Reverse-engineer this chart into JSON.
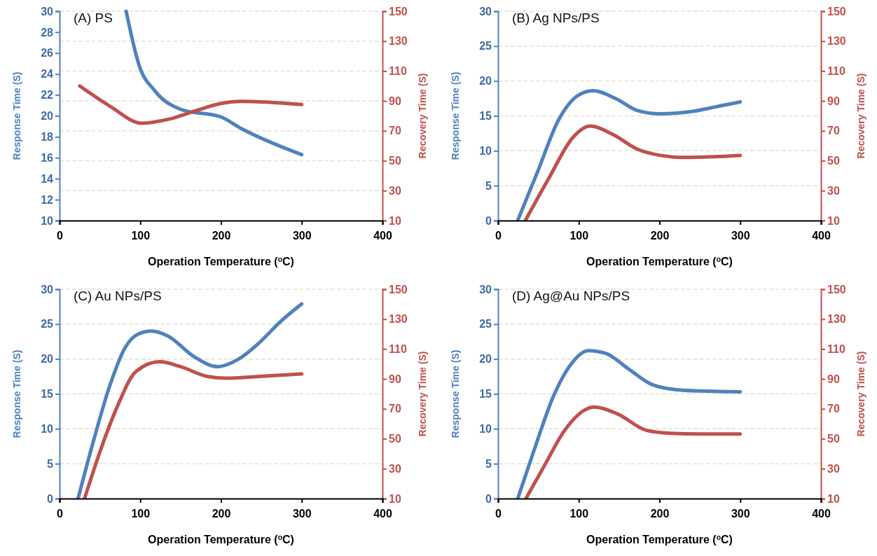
{
  "chart_data": [
    {
      "type": "line",
      "title": "(A) PS",
      "xlabel": "Operation Temperature ($^{o}$C)",
      "ylabel": "Response Time (S)",
      "y2label": "Recovery Time (S)",
      "xlim": [
        0,
        400
      ],
      "xticks": [
        0,
        100,
        200,
        300,
        400
      ],
      "ylim": [
        10,
        30
      ],
      "yticks": [
        10,
        12,
        14,
        16,
        18,
        20,
        22,
        24,
        26,
        28,
        30
      ],
      "y2lim": [
        10,
        150
      ],
      "y2ticks": [
        10,
        30,
        50,
        70,
        90,
        110,
        130,
        150
      ],
      "grid": "y2",
      "series": [
        {
          "color": "#4f81bd",
          "x": [
            82.5,
            98.7,
            118,
            151,
            200,
            225,
            300
          ],
          "values": [
            30,
            24.8,
            22.4,
            20.6,
            19.9,
            18.8,
            16.3
          ]
        },
        {
          "color": "#c0504d",
          "axis": "y2",
          "x": [
            25,
            63,
            102,
            134.6,
            170,
            200,
            225,
            300
          ],
          "values": [
            100,
            86.3,
            75.1,
            77.7,
            83.7,
            88.3,
            89.7,
            87.6
          ]
        }
      ]
    },
    {
      "type": "line",
      "title": "(B) Ag NPs/PS",
      "xlabel": "Operation Temperature ($^{o}$C)",
      "ylabel": "Response Time (S)",
      "y2label": "Recovery Time (S)",
      "xlim": [
        0,
        400
      ],
      "xticks": [
        0,
        100,
        200,
        300,
        400
      ],
      "ylim": [
        0,
        30
      ],
      "yticks": [
        0,
        5,
        10,
        15,
        20,
        25,
        30
      ],
      "y2lim": [
        10,
        150
      ],
      "y2ticks": [
        10,
        30,
        50,
        70,
        90,
        110,
        130,
        150
      ],
      "grid": "y",
      "series": [
        {
          "color": "#4f81bd",
          "x": [
            24.3,
            49,
            74.4,
            100,
            118,
            147,
            172,
            201,
            238,
            274,
            300
          ],
          "values": [
            0,
            7.0,
            14.3,
            18.0,
            18.6,
            17.4,
            15.8,
            15.3,
            15.6,
            16.4,
            17.0
          ]
        },
        {
          "color": "#c0504d",
          "axis": "y2",
          "x": [
            33.8,
            63.5,
            92.6,
            114,
            143,
            172,
            201,
            230,
            300
          ],
          "values": [
            10,
            38.9,
            65.5,
            73.2,
            67.4,
            57.9,
            53.6,
            52.2,
            53.6
          ]
        }
      ]
    },
    {
      "type": "line",
      "title": "(C) Au NPs/PS",
      "xlabel": "Operation Temperature ($^{o}$C)",
      "ylabel": "Response Time (S)",
      "y2label": "Recovery Time (S)",
      "xlim": [
        0,
        400
      ],
      "xticks": [
        0,
        100,
        200,
        300,
        400
      ],
      "ylim": [
        0,
        30
      ],
      "yticks": [
        0,
        5,
        10,
        15,
        20,
        25,
        30
      ],
      "y2lim": [
        10,
        150
      ],
      "y2ticks": [
        10,
        30,
        50,
        70,
        90,
        110,
        130,
        150
      ],
      "grid": "y",
      "series": [
        {
          "color": "#4f81bd",
          "x": [
            22.9,
            42.4,
            62,
            81.6,
            98,
            114,
            134,
            167,
            196,
            222,
            248,
            274,
            300
          ],
          "values": [
            0,
            8.4,
            16.1,
            21.7,
            23.6,
            24.0,
            23.3,
            20.3,
            18.9,
            20.0,
            22.4,
            25.4,
            27.9
          ]
        },
        {
          "color": "#c0504d",
          "axis": "y2",
          "x": [
            31,
            52,
            72,
            94.7,
            124,
            150,
            183,
            206,
            248,
            300
          ],
          "values": [
            10,
            44.3,
            72.1,
            95.0,
            101.5,
            98.2,
            91.7,
            90.5,
            91.7,
            93.3
          ]
        }
      ]
    },
    {
      "type": "line",
      "title": "(D) Ag@Au NPs/PS",
      "xlabel": "Operation Temperature ($^{o}$C)",
      "ylabel": "Response Time (S)",
      "y2label": "Recovery Time (S)",
      "xlim": [
        0,
        400
      ],
      "xticks": [
        0,
        100,
        200,
        300,
        400
      ],
      "ylim": [
        0,
        30
      ],
      "yticks": [
        0,
        5,
        10,
        15,
        20,
        25,
        30
      ],
      "y2lim": [
        10,
        150
      ],
      "y2ticks": [
        10,
        30,
        50,
        70,
        90,
        110,
        130,
        150
      ],
      "grid": "y",
      "series": [
        {
          "color": "#4f81bd",
          "x": [
            24.4,
            46,
            68,
            90,
            111.6,
            133.5,
            162.5,
            191.6,
            231.6,
            300
          ],
          "values": [
            0,
            7.4,
            14.5,
            19.2,
            21.2,
            20.8,
            18.5,
            16.3,
            15.5,
            15.3
          ]
        },
        {
          "color": "#c0504d",
          "axis": "y2",
          "x": [
            34.5,
            57,
            82.5,
            108,
            119,
            148,
            184,
            213,
            250,
            300
          ],
          "values": [
            10,
            31.6,
            55.6,
            69.4,
            71.2,
            66.6,
            55.6,
            53.7,
            53.2,
            53.2
          ]
        }
      ]
    }
  ]
}
